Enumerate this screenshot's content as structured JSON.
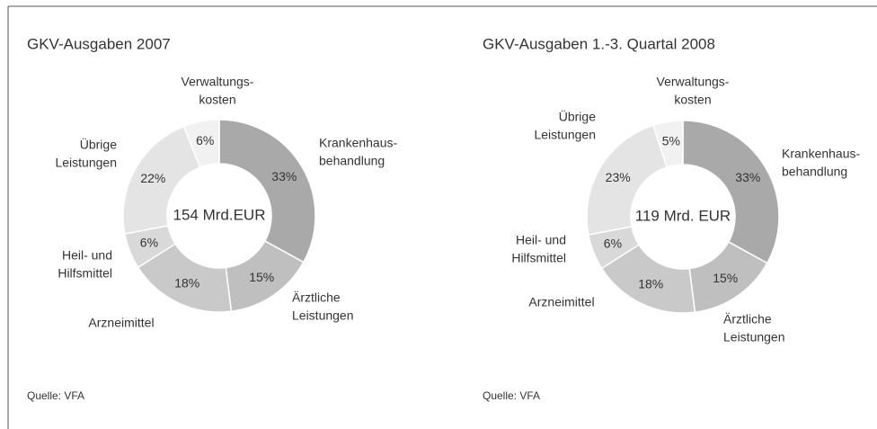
{
  "chart_data": [
    {
      "type": "pie",
      "title": "GKV-Ausgaben 2007",
      "center_label": "154 Mrd.EUR",
      "source": "Quelle: VFA",
      "categories": [
        [
          "Krankenhaus-",
          "behandlung"
        ],
        [
          "Ärztliche",
          "Leistungen"
        ],
        [
          "Arzneimittel"
        ],
        [
          "Heil- und",
          "Hilfsmittel"
        ],
        [
          "Übrige",
          "Leistungen"
        ],
        [
          "Verwaltungs-",
          "kosten"
        ]
      ],
      "values": [
        33,
        15,
        18,
        6,
        22,
        6
      ],
      "value_labels": [
        "33%",
        "15%",
        "18%",
        "6%",
        "22%",
        "6%"
      ],
      "colors": [
        "#a9a9a9",
        "#bfbfbf",
        "#c9c9c9",
        "#d9d9d9",
        "#e4e4e4",
        "#f1f1f1"
      ]
    },
    {
      "type": "pie",
      "title": "GKV-Ausgaben 1.-3. Quartal 2008",
      "center_label": "119 Mrd. EUR",
      "source": "Quelle: VFA",
      "categories": [
        [
          "Krankenhaus-",
          "behandlung"
        ],
        [
          "Ärztliche",
          "Leistungen"
        ],
        [
          "Arzneimittel"
        ],
        [
          "Heil- und",
          "Hilfsmittel"
        ],
        [
          "Übrige",
          "Leistungen"
        ],
        [
          "Verwaltungs-",
          "kosten"
        ]
      ],
      "values": [
        33,
        15,
        18,
        6,
        23,
        5
      ],
      "value_labels": [
        "33%",
        "15%",
        "18%",
        "6%",
        "23%",
        "5%"
      ],
      "colors": [
        "#a9a9a9",
        "#bfbfbf",
        "#c9c9c9",
        "#d9d9d9",
        "#e4e4e4",
        "#f1f1f1"
      ]
    }
  ]
}
